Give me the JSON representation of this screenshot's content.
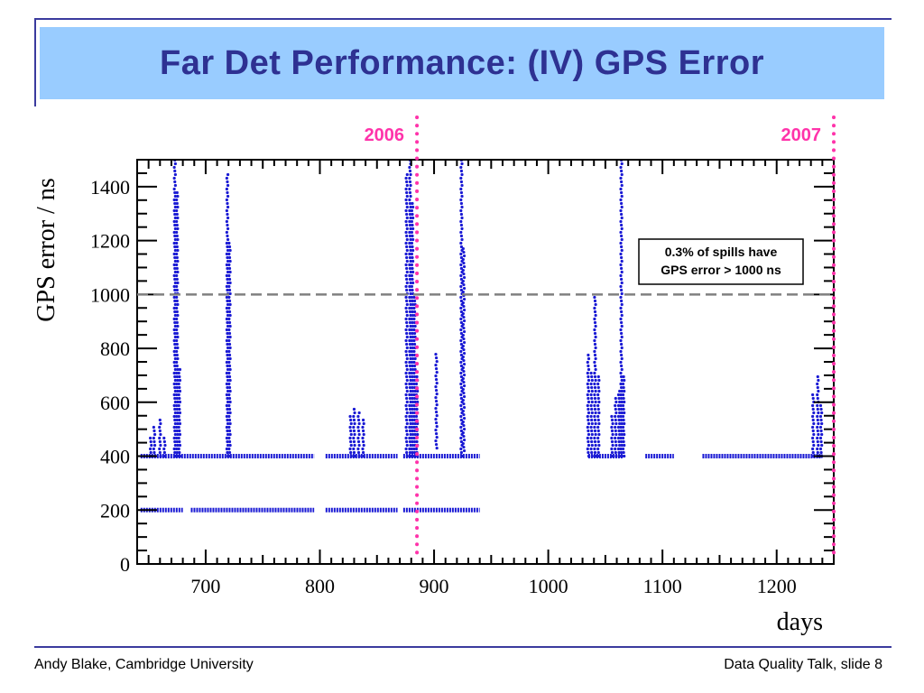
{
  "slide": {
    "title": "Far Det Performance: (IV) GPS Error",
    "footer_left": "Andy Blake, Cambridge University",
    "footer_right": "Data Quality Talk, slide 8",
    "title_bg_color": "#99ccff",
    "title_text_color": "#2e3192"
  },
  "chart_data": {
    "type": "scatter",
    "title": "",
    "xlabel": "days",
    "ylabel": "GPS error / ns",
    "xlim": [
      640,
      1250
    ],
    "ylim": [
      0,
      1500
    ],
    "xticks": [
      "700",
      "800",
      "900",
      "1000",
      "1100",
      "1200"
    ],
    "xtick_values": [
      700,
      800,
      900,
      1000,
      1100,
      1200
    ],
    "yticks": [
      "0",
      "200",
      "400",
      "600",
      "800",
      "1000",
      "1200",
      "1400"
    ],
    "ytick_values": [
      0,
      200,
      400,
      600,
      800,
      1000,
      1200,
      1400
    ],
    "grid": false,
    "marker_color": "#1a1ad4",
    "baseline_400_segments": [
      [
        643,
        795
      ],
      [
        805,
        868
      ],
      [
        873,
        940
      ],
      [
        1035,
        1065
      ],
      [
        1085,
        1110
      ],
      [
        1135,
        1240
      ]
    ],
    "baseline_200_segments": [
      [
        643,
        680
      ],
      [
        687,
        795
      ],
      [
        805,
        868
      ],
      [
        873,
        940
      ]
    ],
    "spikes": [
      {
        "x": 652,
        "ymin": 400,
        "ymax": 480
      },
      {
        "x": 655,
        "ymin": 400,
        "ymax": 510
      },
      {
        "x": 660,
        "ymin": 400,
        "ymax": 540
      },
      {
        "x": 664,
        "ymin": 400,
        "ymax": 470
      },
      {
        "x": 673,
        "ymin": 400,
        "ymax": 1500
      },
      {
        "x": 675,
        "ymin": 400,
        "ymax": 1380
      },
      {
        "x": 677,
        "ymin": 400,
        "ymax": 730
      },
      {
        "x": 719,
        "ymin": 400,
        "ymax": 1450
      },
      {
        "x": 721,
        "ymin": 400,
        "ymax": 1200
      },
      {
        "x": 827,
        "ymin": 400,
        "ymax": 560
      },
      {
        "x": 830,
        "ymin": 400,
        "ymax": 580
      },
      {
        "x": 834,
        "ymin": 400,
        "ymax": 570
      },
      {
        "x": 838,
        "ymin": 400,
        "ymax": 540
      },
      {
        "x": 876,
        "ymin": 400,
        "ymax": 1450
      },
      {
        "x": 879,
        "ymin": 400,
        "ymax": 1500
      },
      {
        "x": 881,
        "ymin": 400,
        "ymax": 1350
      },
      {
        "x": 883,
        "ymin": 400,
        "ymax": 1000
      },
      {
        "x": 885,
        "ymin": 400,
        "ymax": 700
      },
      {
        "x": 902,
        "ymin": 430,
        "ymax": 790
      },
      {
        "x": 924,
        "ymin": 400,
        "ymax": 1500
      },
      {
        "x": 926,
        "ymin": 420,
        "ymax": 1180
      },
      {
        "x": 1035,
        "ymin": 400,
        "ymax": 780
      },
      {
        "x": 1038,
        "ymin": 400,
        "ymax": 720
      },
      {
        "x": 1041,
        "ymin": 400,
        "ymax": 990
      },
      {
        "x": 1044,
        "ymin": 400,
        "ymax": 700
      },
      {
        "x": 1056,
        "ymin": 400,
        "ymax": 560
      },
      {
        "x": 1059,
        "ymin": 400,
        "ymax": 620
      },
      {
        "x": 1062,
        "ymin": 400,
        "ymax": 650
      },
      {
        "x": 1064,
        "ymin": 400,
        "ymax": 1500
      },
      {
        "x": 1066,
        "ymin": 400,
        "ymax": 700
      },
      {
        "x": 1232,
        "ymin": 400,
        "ymax": 640
      },
      {
        "x": 1236,
        "ymin": 400,
        "ymax": 700
      },
      {
        "x": 1239,
        "ymin": 400,
        "ymax": 600
      }
    ],
    "threshold": {
      "y": 1000,
      "style": "dashed",
      "color": "#808080"
    },
    "year_markers": [
      {
        "label": "2006",
        "x": 885,
        "color": "#ff33aa"
      },
      {
        "label": "2007",
        "x": 1250,
        "color": "#ff33aa"
      }
    ],
    "annotation": {
      "line1": "0.3% of spills have",
      "line2": "GPS error > 1000 ns"
    }
  }
}
